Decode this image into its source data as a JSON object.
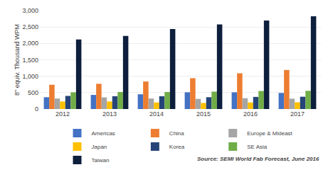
{
  "chart_data": {
    "type": "bar",
    "categories": [
      "2012",
      "2013",
      "2014",
      "2015",
      "2016",
      "2017"
    ],
    "series": [
      {
        "name": "Americas",
        "color": "#4472C4",
        "values": [
          360,
          430,
          450,
          510,
          510,
          490
        ]
      },
      {
        "name": "China",
        "color": "#ED7D31",
        "values": [
          740,
          770,
          840,
          940,
          1090,
          1190
        ]
      },
      {
        "name": "Europe & Mideast",
        "color": "#A5A5A5",
        "values": [
          320,
          355,
          320,
          310,
          330,
          315
        ]
      },
      {
        "name": "Japan",
        "color": "#FFC000",
        "values": [
          230,
          230,
          200,
          185,
          200,
          205
        ]
      },
      {
        "name": "Korea",
        "color": "#264478",
        "values": [
          400,
          390,
          390,
          360,
          370,
          375
        ]
      },
      {
        "name": "SE Asia",
        "color": "#70AD47",
        "values": [
          510,
          520,
          520,
          530,
          550,
          555
        ]
      },
      {
        "name": "Taiwan",
        "color": "#0D1F3C",
        "values": [
          2120,
          2230,
          2440,
          2580,
          2700,
          2830
        ]
      }
    ],
    "ylim": [
      0,
      3000
    ],
    "yticks": [
      0,
      500,
      {
        "value": 1000,
        "label": "1,000"
      },
      {
        "value": 1500,
        "label": "1,500"
      },
      {
        "value": 2000,
        "label": "2,000"
      },
      {
        "value": 2500,
        "label": "2,500"
      },
      {
        "value": 3000,
        "label": "3,000"
      }
    ],
    "ylabel": "8\" equiv. Thousand WPM",
    "annotations": [
      "Source: SEMI World Fab Forecast, June 2016"
    ],
    "grid": true,
    "legend": "bottom"
  }
}
